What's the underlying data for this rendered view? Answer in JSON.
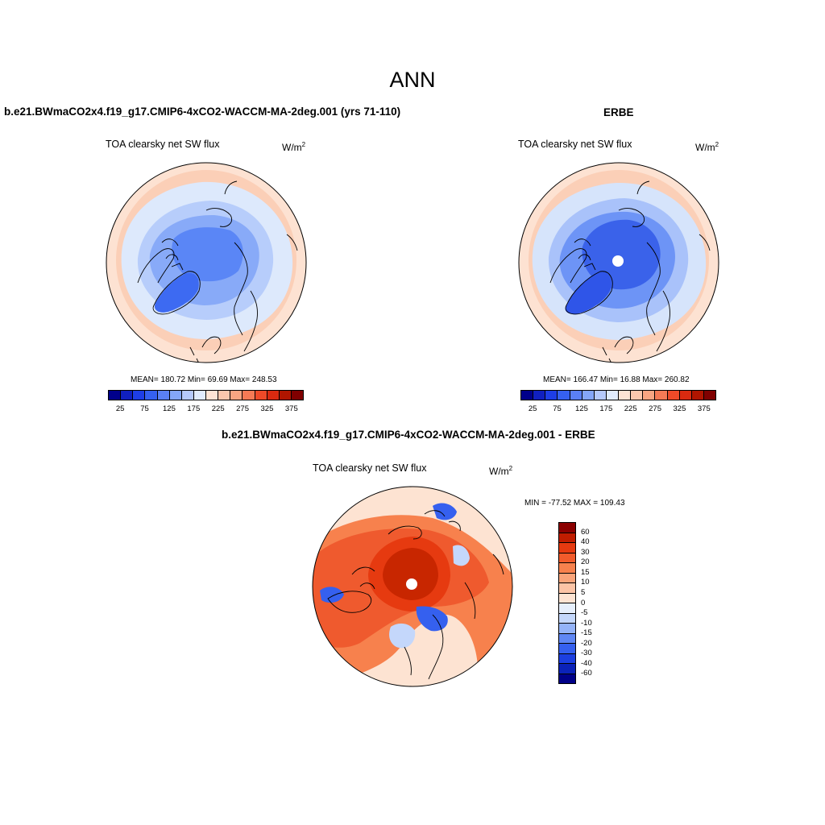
{
  "figure_title": "ANN",
  "panels": [
    {
      "id": "model",
      "title": "b.e21.BWmaCO2x4.f19_g17.CMIP6-4xCO2-WACCM-MA-2deg.001 (yrs 71-110)",
      "variable": "TOA clearsky net SW flux",
      "units": "W/m",
      "units_exp": "2",
      "stats": "MEAN= 180.72  Min=  69.69  Max= 248.53",
      "colorbar": [
        "#00008b",
        "#1020c0",
        "#1e3ee6",
        "#3560f0",
        "#5a80f5",
        "#84a6f8",
        "#b5c9fb",
        "#e0ebfd",
        "#fde3d4",
        "#fbc7ad",
        "#f8a582",
        "#f57a55",
        "#ee4a28",
        "#d92a10",
        "#b01500",
        "#800000"
      ],
      "ticks": [
        "25",
        "75",
        "125",
        "175",
        "225",
        "275",
        "325",
        "375"
      ],
      "map_colors": {
        "outer": "#fde2d2",
        "ring1": "#fbcfb7",
        "ring2": "#dde9fc",
        "ring3": "#b7cdfb",
        "ring4": "#88aaf8",
        "core": "#5a86f6",
        "greenland": "#3d6af2"
      }
    },
    {
      "id": "obs",
      "title": "ERBE",
      "variable": "TOA clearsky net SW flux",
      "units": "W/m",
      "units_exp": "2",
      "stats": "MEAN= 166.47  Min=  16.88  Max= 260.82",
      "colorbar": [
        "#00008b",
        "#1020c0",
        "#1e3ee6",
        "#3560f0",
        "#5a80f5",
        "#84a6f8",
        "#b5c9fb",
        "#e0ebfd",
        "#fde3d4",
        "#fbc7ad",
        "#f8a582",
        "#f57a55",
        "#ee4a28",
        "#d92a10",
        "#b01500",
        "#800000"
      ],
      "ticks": [
        "25",
        "75",
        "125",
        "175",
        "225",
        "275",
        "325",
        "375"
      ],
      "map_colors": {
        "outer": "#fde2d2",
        "ring1": "#fbcfb7",
        "ring2": "#d6e4fb",
        "ring3": "#a9c2fa",
        "ring4": "#6d94f6",
        "core": "#3a62ea",
        "greenland": "#2f55e8"
      }
    },
    {
      "id": "diff",
      "title": "b.e21.BWmaCO2x4.f19_g17.CMIP6-4xCO2-WACCM-MA-2deg.001 - ERBE",
      "variable": "TOA clearsky net SW flux",
      "units": "W/m",
      "units_exp": "2",
      "stats": "MIN = -77.52 MAX = 109.43",
      "colorbar": [
        "#8b0000",
        "#c01d00",
        "#e63a10",
        "#f25b2b",
        "#f7814d",
        "#f9a47a",
        "#fcc4a6",
        "#fde3d2",
        "#e6effc",
        "#c4d7fb",
        "#94b3f8",
        "#5f87f4",
        "#3560ef",
        "#1c3fe0",
        "#0b22b8",
        "#000088"
      ],
      "ticks": [
        "60",
        "40",
        "30",
        "20",
        "15",
        "10",
        "5",
        "0",
        "-5",
        "-10",
        "-15",
        "-20",
        "-30",
        "-40",
        "-60"
      ],
      "map_colors": {
        "outer": "#fde3d2",
        "ring1": "#f7814d",
        "ring2": "#ef5a2e",
        "ring3": "#e63a10",
        "core": "#c82600",
        "blue": "#3560ef",
        "lightblue": "#c4d7fb"
      }
    }
  ]
}
